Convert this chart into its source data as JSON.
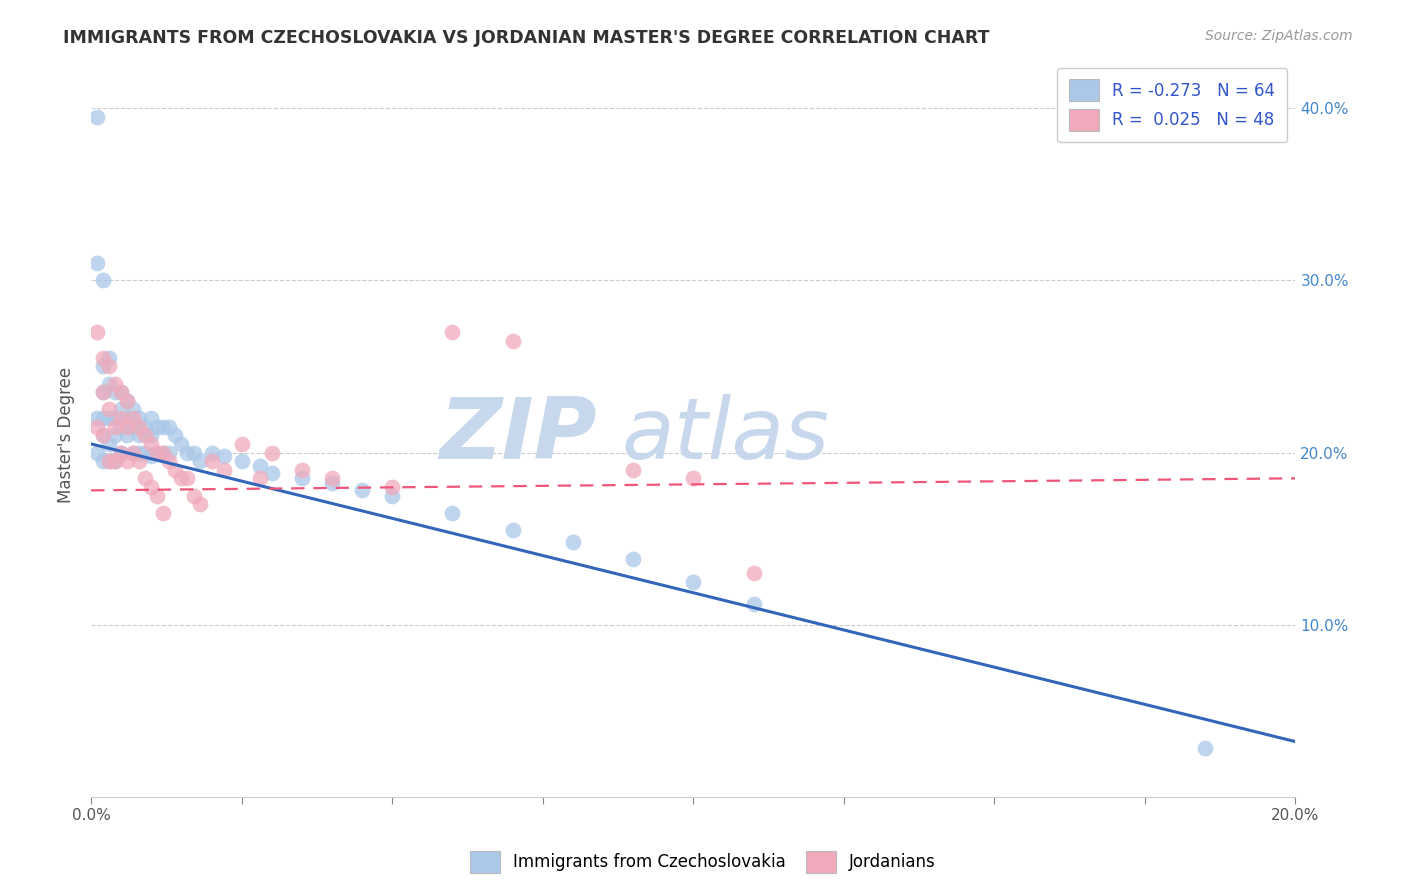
{
  "title": "IMMIGRANTS FROM CZECHOSLOVAKIA VS JORDANIAN MASTER'S DEGREE CORRELATION CHART",
  "source_text": "Source: ZipAtlas.com",
  "ylabel": "Master's Degree",
  "xlim": [
    0.0,
    0.2
  ],
  "ylim": [
    0.0,
    0.42
  ],
  "xticks": [
    0.0,
    0.025,
    0.05,
    0.075,
    0.1,
    0.125,
    0.15,
    0.175,
    0.2
  ],
  "xtick_labels_show": [
    "0.0%",
    "",
    "",
    "",
    "",
    "",
    "",
    "",
    "20.0%"
  ],
  "yticks": [
    0.0,
    0.1,
    0.2,
    0.3,
    0.4
  ],
  "ytick_labels_right": [
    "",
    "10.0%",
    "20.0%",
    "30.0%",
    "40.0%"
  ],
  "blue_R": -0.273,
  "blue_N": 64,
  "pink_R": 0.025,
  "pink_N": 48,
  "blue_color": "#aac8e8",
  "pink_color": "#f0aabb",
  "blue_line_color": "#3366bb",
  "pink_line_color": "#ee5577",
  "watermark_zip": "ZIP",
  "watermark_atlas": "atlas",
  "watermark_color": "#c8d8ec",
  "legend_R_color": "#3355cc",
  "legend_label_color": "#3355cc",
  "blue_trend_x0": 0.0,
  "blue_trend_y0": 0.205,
  "blue_trend_x1": 0.2,
  "blue_trend_y1": 0.032,
  "pink_trend_x0": 0.0,
  "pink_trend_y0": 0.178,
  "pink_trend_x1": 0.2,
  "pink_trend_y1": 0.185,
  "blue_scatter_x": [
    0.001,
    0.001,
    0.001,
    0.001,
    0.002,
    0.002,
    0.002,
    0.002,
    0.002,
    0.003,
    0.003,
    0.003,
    0.003,
    0.003,
    0.004,
    0.004,
    0.004,
    0.004,
    0.005,
    0.005,
    0.005,
    0.005,
    0.006,
    0.006,
    0.006,
    0.007,
    0.007,
    0.007,
    0.008,
    0.008,
    0.008,
    0.009,
    0.009,
    0.01,
    0.01,
    0.01,
    0.011,
    0.011,
    0.012,
    0.012,
    0.013,
    0.013,
    0.014,
    0.015,
    0.016,
    0.017,
    0.018,
    0.02,
    0.022,
    0.025,
    0.028,
    0.03,
    0.035,
    0.04,
    0.045,
    0.05,
    0.06,
    0.07,
    0.08,
    0.09,
    0.1,
    0.11,
    0.185,
    0.002
  ],
  "blue_scatter_y": [
    0.395,
    0.31,
    0.22,
    0.2,
    0.25,
    0.235,
    0.22,
    0.21,
    0.195,
    0.255,
    0.24,
    0.22,
    0.205,
    0.195,
    0.235,
    0.22,
    0.21,
    0.195,
    0.235,
    0.225,
    0.215,
    0.2,
    0.23,
    0.22,
    0.21,
    0.225,
    0.215,
    0.2,
    0.22,
    0.21,
    0.2,
    0.215,
    0.2,
    0.22,
    0.21,
    0.198,
    0.215,
    0.2,
    0.215,
    0.2,
    0.215,
    0.2,
    0.21,
    0.205,
    0.2,
    0.2,
    0.195,
    0.2,
    0.198,
    0.195,
    0.192,
    0.188,
    0.185,
    0.182,
    0.178,
    0.175,
    0.165,
    0.155,
    0.148,
    0.138,
    0.125,
    0.112,
    0.028,
    0.3
  ],
  "pink_scatter_x": [
    0.001,
    0.001,
    0.002,
    0.002,
    0.002,
    0.003,
    0.003,
    0.003,
    0.004,
    0.004,
    0.004,
    0.005,
    0.005,
    0.005,
    0.006,
    0.006,
    0.006,
    0.007,
    0.007,
    0.008,
    0.008,
    0.009,
    0.009,
    0.01,
    0.01,
    0.011,
    0.011,
    0.012,
    0.012,
    0.013,
    0.014,
    0.015,
    0.016,
    0.017,
    0.018,
    0.02,
    0.022,
    0.025,
    0.028,
    0.03,
    0.035,
    0.04,
    0.05,
    0.06,
    0.07,
    0.09,
    0.1,
    0.11
  ],
  "pink_scatter_y": [
    0.27,
    0.215,
    0.255,
    0.235,
    0.21,
    0.25,
    0.225,
    0.195,
    0.24,
    0.215,
    0.195,
    0.235,
    0.22,
    0.2,
    0.23,
    0.215,
    0.195,
    0.22,
    0.2,
    0.215,
    0.195,
    0.21,
    0.185,
    0.205,
    0.18,
    0.2,
    0.175,
    0.2,
    0.165,
    0.195,
    0.19,
    0.185,
    0.185,
    0.175,
    0.17,
    0.195,
    0.19,
    0.205,
    0.185,
    0.2,
    0.19,
    0.185,
    0.18,
    0.27,
    0.265,
    0.19,
    0.185,
    0.13
  ]
}
